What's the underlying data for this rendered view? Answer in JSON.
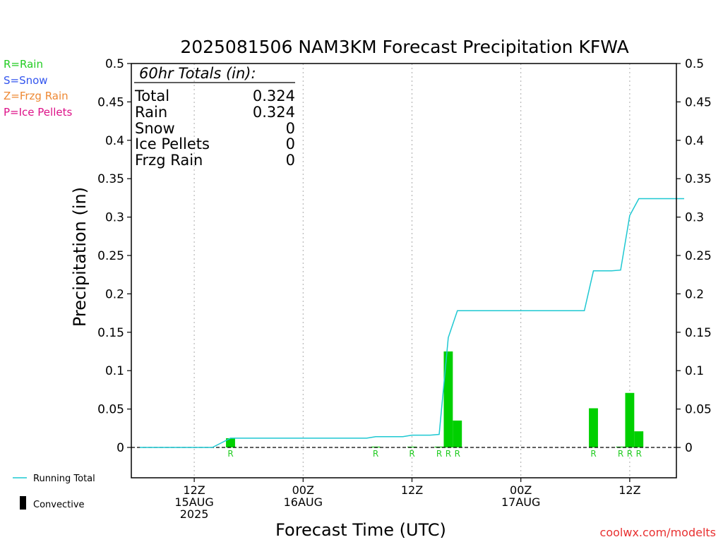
{
  "chart_data": {
    "type": "bar",
    "title": "2025081506 NAM3KM Forecast Precipitation KFWA",
    "xlabel": "Forecast Time (UTC)",
    "ylabel": "Precipitation (in)",
    "ylim": [
      -0.04,
      0.5
    ],
    "yticks": [
      0,
      0.05,
      0.1,
      0.15,
      0.2,
      0.25,
      0.3,
      0.35,
      0.4,
      0.45,
      0.5
    ],
    "ytick_labels": [
      "0",
      "0.05",
      "0.1",
      "0.15",
      "0.2",
      "0.25",
      "0.3",
      "0.35",
      "0.4",
      "0.45",
      "0.5"
    ],
    "x_range_hours": [
      0,
      60
    ],
    "x_ticks": [
      {
        "hour": 6,
        "line1": "12Z",
        "line2": "15AUG",
        "line3": "2025"
      },
      {
        "hour": 18,
        "line1": "00Z",
        "line2": "16AUG",
        "line3": ""
      },
      {
        "hour": 30,
        "line1": "12Z",
        "line2": "",
        "line3": ""
      },
      {
        "hour": 42,
        "line1": "00Z",
        "line2": "17AUG",
        "line3": ""
      },
      {
        "hour": 54,
        "line1": "12Z",
        "line2": "",
        "line3": ""
      }
    ],
    "grid": true,
    "bars": [
      {
        "hour": 10,
        "value": 0.012,
        "type": "R"
      },
      {
        "hour": 26,
        "value": 0.001,
        "type": "R"
      },
      {
        "hour": 30,
        "value": 0.001,
        "type": "R"
      },
      {
        "hour": 33,
        "value": 0.001,
        "type": "R"
      },
      {
        "hour": 34,
        "value": 0.125,
        "type": "R"
      },
      {
        "hour": 35,
        "value": 0.035,
        "type": "R"
      },
      {
        "hour": 50,
        "value": 0.051,
        "type": "R"
      },
      {
        "hour": 53,
        "value": 0.001,
        "type": "R"
      },
      {
        "hour": 54,
        "value": 0.071,
        "type": "R"
      },
      {
        "hour": 55,
        "value": 0.021,
        "type": "R"
      }
    ],
    "running_total": {
      "name": "Running Total",
      "x": [
        0,
        8,
        9,
        10,
        25,
        26,
        29,
        30,
        31,
        32,
        33,
        34,
        35,
        36,
        49,
        50,
        52,
        53,
        54,
        55,
        60
      ],
      "y": [
        0,
        0,
        0.006,
        0.012,
        0.012,
        0.014,
        0.014,
        0.016,
        0.016,
        0.016,
        0.017,
        0.143,
        0.178,
        0.178,
        0.178,
        0.23,
        0.23,
        0.231,
        0.302,
        0.324,
        0.324
      ]
    },
    "totals_box": {
      "heading": "60hr Totals (in):",
      "rows": [
        {
          "label": "Total",
          "value": "0.324"
        },
        {
          "label": "Rain",
          "value": "0.324"
        },
        {
          "label": "Snow",
          "value": "0"
        },
        {
          "label": "Ice Pellets",
          "value": "0"
        },
        {
          "label": "Frzg Rain",
          "value": "0"
        }
      ]
    },
    "type_legend": [
      {
        "text": "R=Rain",
        "color": "#22cc22"
      },
      {
        "text": "S=Snow",
        "color": "#3355ee"
      },
      {
        "text": "Z=Frzg Rain",
        "color": "#ee8833"
      },
      {
        "text": "P=Ice Pellets",
        "color": "#dd1188"
      }
    ],
    "legend": [
      {
        "label": "Running Total",
        "color": "#1ec8d2",
        "kind": "line"
      },
      {
        "label": "Convective",
        "color": "#000000",
        "kind": "bar"
      }
    ],
    "colors": {
      "bar": "#00d000",
      "line": "#1ec8d2",
      "rain_label": "#22cc22",
      "credit": "#e83030"
    },
    "credit": "coolwx.com/modelts"
  }
}
